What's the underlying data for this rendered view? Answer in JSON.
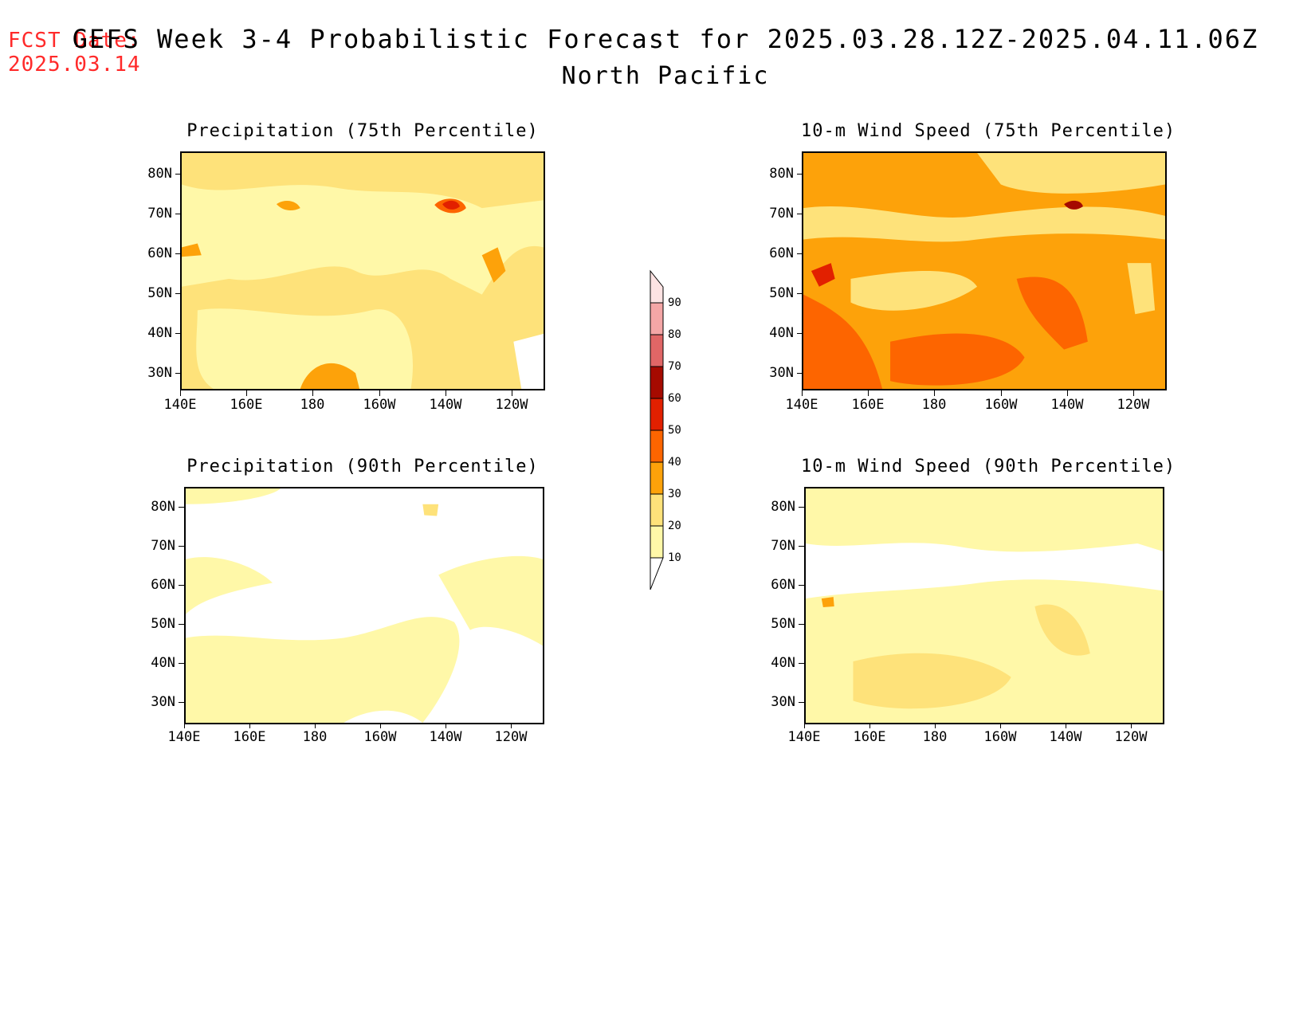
{
  "header": {
    "fcst_label": "FCST Date:",
    "fcst_date": "2025.03.14",
    "title": "GEFS Week 3-4 Probabilistic Forecast for 2025.03.28.12Z-2025.04.11.06Z",
    "region": "North Pacific"
  },
  "panels": [
    {
      "title": "Precipitation (75th Percentile)"
    },
    {
      "title": "10-m Wind Speed (75th Percentile)"
    },
    {
      "title": "Precipitation (90th Percentile)"
    },
    {
      "title": "10-m Wind Speed (90th Percentile)"
    }
  ],
  "axes": {
    "lat_labels": [
      "80N",
      "70N",
      "60N",
      "50N",
      "40N",
      "30N"
    ],
    "lon_labels": [
      "140E",
      "160E",
      "180",
      "160W",
      "140W",
      "120W"
    ]
  },
  "colorbar": {
    "levels": [
      "90",
      "80",
      "70",
      "60",
      "50",
      "40",
      "30",
      "20",
      "10"
    ],
    "colors": {
      "10-20": "#fff8a8",
      "20-30": "#fee27a",
      "30-40": "#fda20a",
      "40-50": "#fd6500",
      "50-60": "#e22000",
      "60-70": "#a50a00",
      "70-80": "#e06666",
      "80-90": "#f4a6a6",
      "90+": "#fde3e3"
    }
  }
}
